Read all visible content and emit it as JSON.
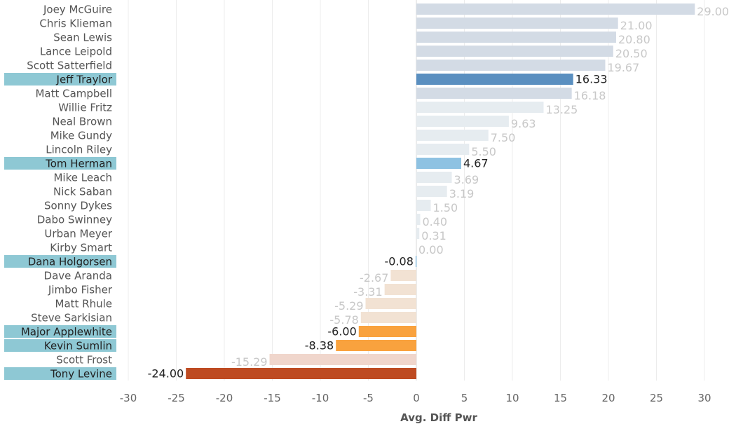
{
  "chart_data": {
    "type": "bar",
    "orientation": "horizontal",
    "xlabel": "Avg. Diff Pwr",
    "xlim": [
      -31.5,
      33.5
    ],
    "xticks": [
      -30,
      -25,
      -20,
      -15,
      -10,
      -5,
      0,
      5,
      10,
      15,
      20,
      25,
      30
    ],
    "grid": "vertical",
    "categories": [
      "Joey McGuire",
      "Chris Klieman",
      "Sean Lewis",
      "Lance Leipold",
      "Scott Satterfield",
      "Jeff Traylor",
      "Matt Campbell",
      "Willie Fritz",
      "Neal Brown",
      "Mike Gundy",
      "Lincoln Riley",
      "Tom Herman",
      "Mike Leach",
      "Nick Saban",
      "Sonny Dykes",
      "Dabo Swinney",
      "Urban Meyer",
      "Kirby Smart",
      "Dana Holgorsen",
      "Dave Aranda",
      "Jimbo Fisher",
      "Matt Rhule",
      "Steve Sarkisian",
      "Major Applewhite",
      "Kevin Sumlin",
      "Scott Frost",
      "Tony Levine"
    ],
    "values": [
      29.0,
      21.0,
      20.8,
      20.5,
      19.67,
      16.33,
      16.18,
      13.25,
      9.63,
      7.5,
      5.5,
      4.67,
      3.69,
      3.19,
      1.5,
      0.4,
      0.31,
      0.0,
      -0.08,
      -2.67,
      -3.31,
      -5.29,
      -5.78,
      -6.0,
      -8.38,
      -15.29,
      -24.0
    ],
    "labels": [
      "29.00",
      "21.00",
      "20.80",
      "20.50",
      "19.67",
      "16.33",
      "16.18",
      "13.25",
      "9.63",
      "7.50",
      "5.50",
      "4.67",
      "3.69",
      "3.19",
      "1.50",
      "0.40",
      "0.31",
      "0.00",
      "-0.08",
      "-2.67",
      "-3.31",
      "-5.29",
      "-5.78",
      "-6.00",
      "-8.38",
      "-15.29",
      "-24.00"
    ],
    "highlighted": [
      "Jeff Traylor",
      "Tom Herman",
      "Dana Holgorsen",
      "Major Applewhite",
      "Kevin Sumlin",
      "Tony Levine"
    ],
    "colors": {
      "highlight_label_bg": "#8ec8d4",
      "label_text": "#555555",
      "highlight_label_text": "#222222",
      "value_text_dim": "#c8c8c8",
      "value_text_highlight": "#222222",
      "axis_text": "#666666",
      "grid": "#ececec",
      "dim_positive_strong": "#d3dbe5",
      "dim_positive_weak": "#e6ecf0",
      "dim_negative": "#f2e2d3",
      "dim_negative_strong": "#f0d6cc",
      "highlight_positive_strong": "#5a8fc0",
      "highlight_positive_light": "#8ec2e2",
      "highlight_negative_mid": "#f9a23e",
      "highlight_negative_strong": "#be4b22"
    }
  }
}
